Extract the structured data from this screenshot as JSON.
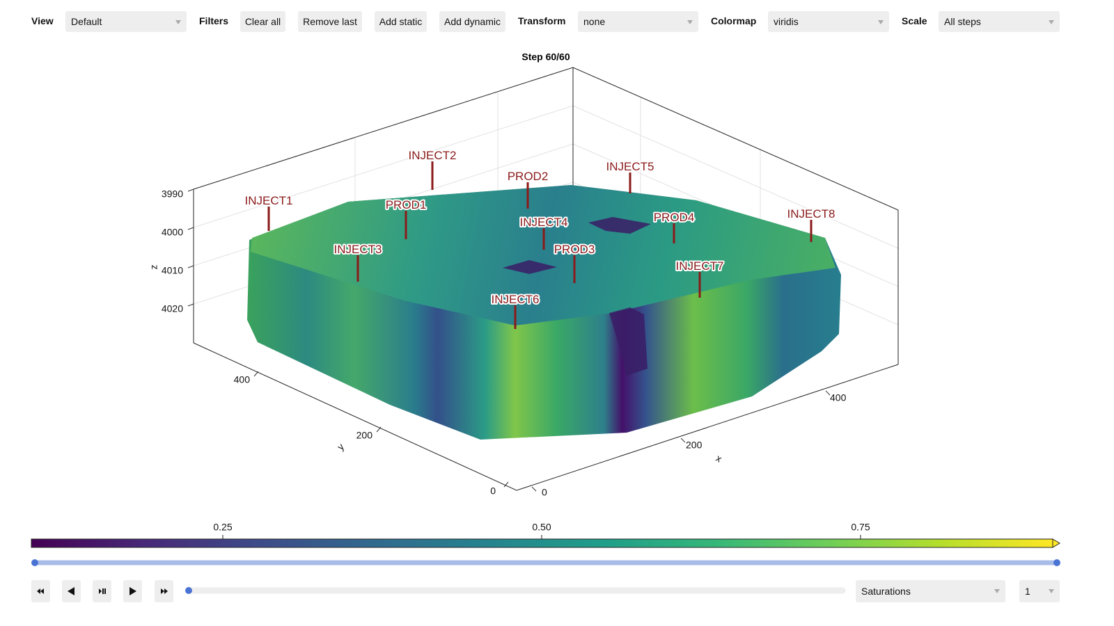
{
  "toolbar": {
    "view_label": "View",
    "view_value": "Default",
    "filters_label": "Filters",
    "buttons": [
      "Clear all",
      "Remove last",
      "Add static",
      "Add dynamic"
    ],
    "transform_label": "Transform",
    "transform_value": "none",
    "colormap_label": "Colormap",
    "colormap_value": "viridis",
    "scale_label": "Scale",
    "scale_value": "All steps"
  },
  "plot": {
    "title": "Step 60/60",
    "z_axis": {
      "label": "z",
      "ticks": [
        "3990",
        "4000",
        "4010",
        "4020"
      ]
    },
    "y_axis": {
      "label": "y",
      "ticks": [
        "400",
        "200",
        "0"
      ]
    },
    "x_axis": {
      "label": "x",
      "ticks": [
        "0",
        "200",
        "400"
      ]
    },
    "wells": [
      "INJECT1",
      "INJECT2",
      "PROD2",
      "INJECT5",
      "PROD1",
      "INJECT4",
      "PROD4",
      "INJECT8",
      "INJECT3",
      "PROD3",
      "INJECT7",
      "INJECT6"
    ]
  },
  "colorbar": {
    "ticks": [
      "0.25",
      "0.50",
      "0.75"
    ]
  },
  "controls": {
    "field": "Saturations",
    "index": "1"
  }
}
